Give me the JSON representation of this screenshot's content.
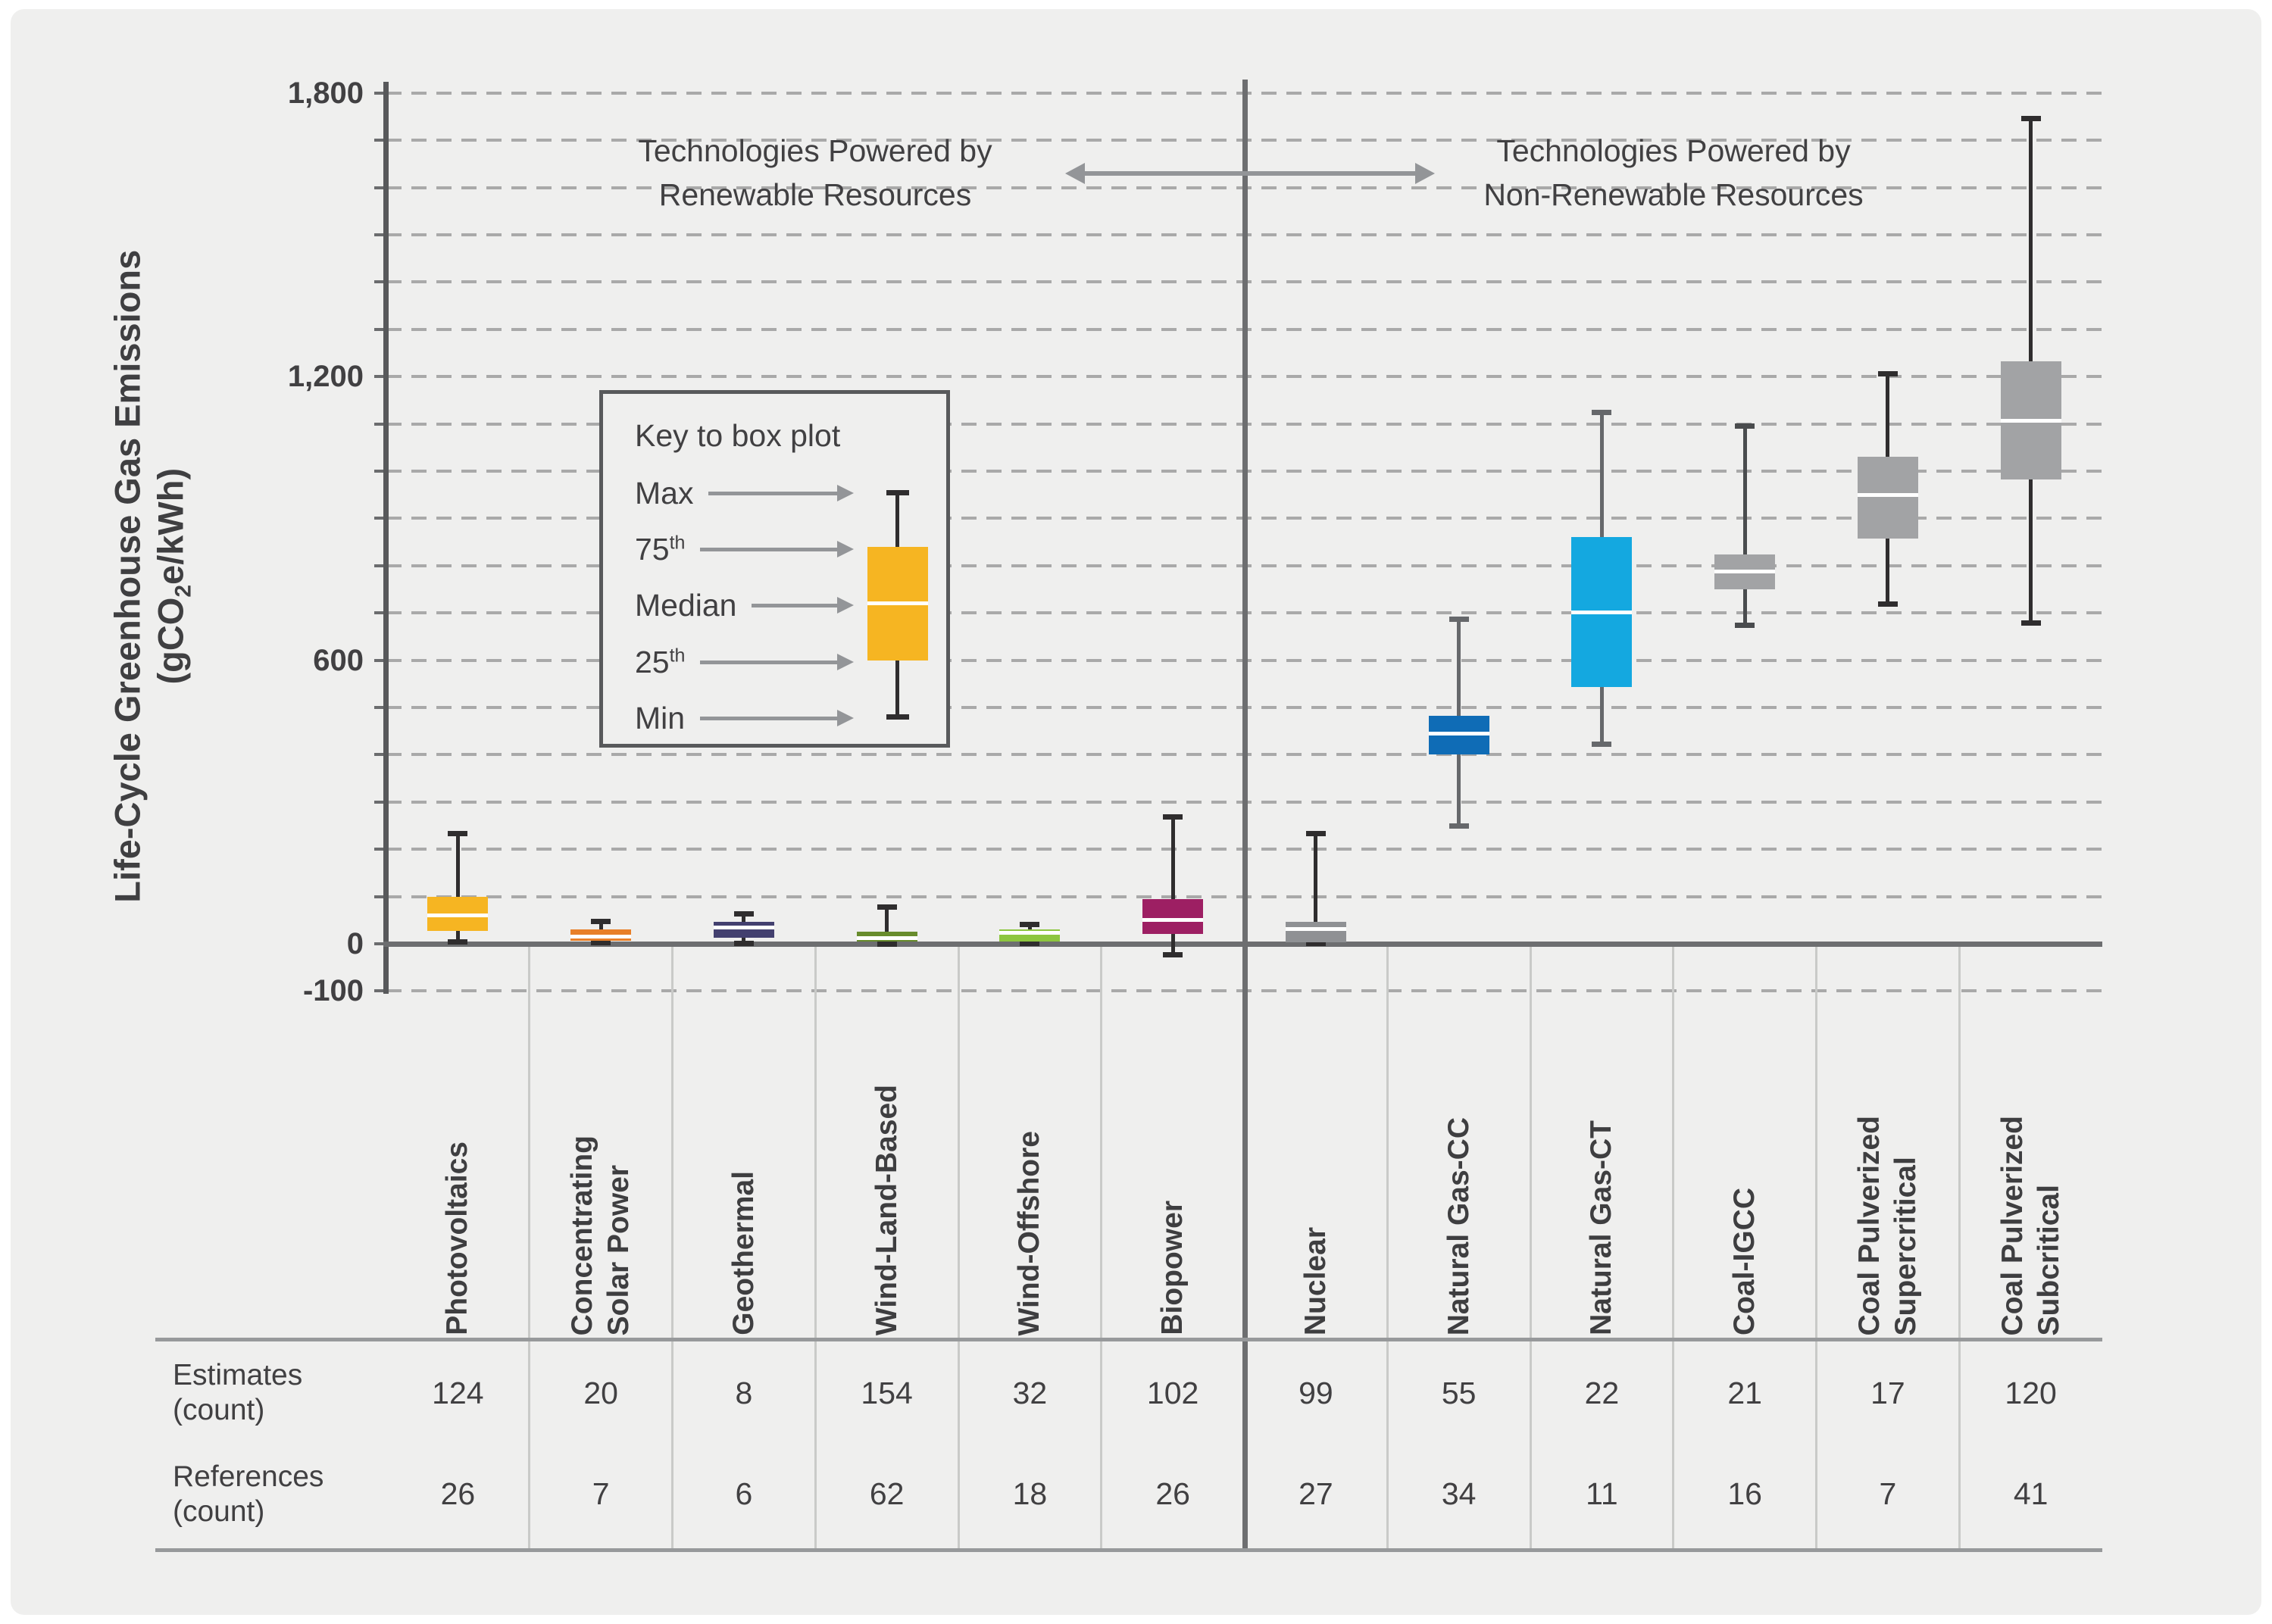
{
  "page": {
    "background": "#ffffff",
    "panel_background": "#efefee",
    "accent_text_color": "#414042"
  },
  "y_axis": {
    "title_line1": "Life-Cycle Greenhouse Gas Emissions",
    "title_unit": {
      "prefix": "(gCO",
      "sub": "2",
      "suffix": "e/kWh)"
    },
    "ticks": [
      {
        "value": 1800,
        "label": "1,800"
      },
      {
        "value": 1200,
        "label": "1,200"
      },
      {
        "value": 600,
        "label": "600"
      },
      {
        "value": 0,
        "label": "0"
      },
      {
        "value": -100,
        "label": "-100"
      }
    ]
  },
  "annotations": {
    "left": "Technologies Powered by\nRenewable Resources",
    "right": "Technologies Powered by\nNon-Renewable Resources",
    "arrow_color": "#939598"
  },
  "legend": {
    "title": "Key to box plot",
    "items": [
      {
        "text": "Max",
        "sup": ""
      },
      {
        "text": "75",
        "sup": "th"
      },
      {
        "text": "Median",
        "sup": ""
      },
      {
        "text": "25",
        "sup": "th"
      },
      {
        "text": "Min",
        "sup": ""
      }
    ],
    "sample_color": "#f6b522",
    "arrow_color": "#939598"
  },
  "table": {
    "row_labels": [
      "Estimates\n(count)",
      "References\n(count)"
    ]
  },
  "chart_data": {
    "type": "boxplot",
    "title": "",
    "ylabel": "Life-Cycle Greenhouse Gas Emissions (gCO2e/kWh)",
    "ylim": [
      -100,
      1800
    ],
    "ytick_step": 100,
    "grid": "dashed horizontal lines every 100 gCO2e/kWh",
    "legend_position": "inside upper-left",
    "groups": [
      {
        "id": "renewable",
        "label": "Technologies Powered by Renewable Resources"
      },
      {
        "id": "non-renewable",
        "label": "Technologies Powered by Non-Renewable Resources"
      }
    ],
    "series": [
      {
        "name": "photovoltaics",
        "label": "Photovoltaics",
        "group": "renewable",
        "color": "#f6b522",
        "whisker_color": "#2f2d2e",
        "min": 5,
        "q1": 27,
        "median": 60,
        "q3": 100,
        "max": 232,
        "estimates": 124,
        "references": 26
      },
      {
        "name": "concentrating-solar-power",
        "label": "Concentrating\nSolar Power",
        "group": "renewable",
        "color": "#e87f28",
        "whisker_color": "#2f2d2e",
        "min": 3,
        "q1": 6,
        "median": 15,
        "q3": 30,
        "max": 46,
        "estimates": 20,
        "references": 7
      },
      {
        "name": "geothermal",
        "label": "Geothermal",
        "group": "renewable",
        "color": "#43406f",
        "whisker_color": "#2f2d2e",
        "min": 2,
        "q1": 13,
        "median": 34,
        "q3": 47,
        "max": 63,
        "estimates": 8,
        "references": 6
      },
      {
        "name": "wind-land-based",
        "label": "Wind-Land-Based",
        "group": "renewable",
        "color": "#688c2c",
        "whisker_color": "#2f2d2e",
        "min": 0,
        "q1": 4,
        "median": 12,
        "q3": 26,
        "max": 77,
        "estimates": 154,
        "references": 62
      },
      {
        "name": "wind-offshore",
        "label": "Wind-Offshore",
        "group": "renewable",
        "color": "#8dc63f",
        "whisker_color": "#2f2d2e",
        "min": 1,
        "q1": 4,
        "median": 23,
        "q3": 31,
        "max": 40,
        "estimates": 32,
        "references": 18
      },
      {
        "name": "biopower",
        "label": "Biopower",
        "group": "renewable",
        "color": "#9d1f63",
        "whisker_color": "#2f2d2e",
        "min": -22,
        "q1": 21,
        "median": 51,
        "q3": 95,
        "max": 268,
        "estimates": 102,
        "references": 26
      },
      {
        "name": "nuclear",
        "label": "Nuclear",
        "group": "non-renewable",
        "color": "#8f9194",
        "whisker_color": "#2f2d2e",
        "min": 1,
        "q1": 4,
        "median": 32,
        "q3": 47,
        "max": 232,
        "estimates": 99,
        "references": 27
      },
      {
        "name": "natural-gas-cc",
        "label": "Natural Gas-CC",
        "group": "non-renewable",
        "color": "#0f6cb6",
        "whisker_color": "#66686b",
        "min": 250,
        "q1": 400,
        "median": 444,
        "q3": 482,
        "max": 686,
        "estimates": 55,
        "references": 34
      },
      {
        "name": "natural-gas-ct",
        "label": "Natural Gas-CT",
        "group": "non-renewable",
        "color": "#14a8e0",
        "whisker_color": "#66686b",
        "min": 423,
        "q1": 543,
        "median": 701,
        "q3": 860,
        "max": 1124,
        "estimates": 22,
        "references": 11
      },
      {
        "name": "coal-igcc",
        "label": "Coal-IGCC",
        "group": "non-renewable",
        "color": "#a2a3a5",
        "whisker_color": "#4a4c4e",
        "min": 675,
        "q1": 750,
        "median": 788,
        "q3": 823,
        "max": 1094,
        "estimates": 21,
        "references": 16
      },
      {
        "name": "coal-pulverized-supercritical",
        "label": "Coal Pulverized\nSupercritical",
        "group": "non-renewable",
        "color": "#a2a3a5",
        "whisker_color": "#2f2d2e",
        "min": 720,
        "q1": 857,
        "median": 949,
        "q3": 1030,
        "max": 1205,
        "estimates": 17,
        "references": 7
      },
      {
        "name": "coal-pulverized-subcritical",
        "label": "Coal Pulverized\nSubcritical",
        "group": "non-renewable",
        "color": "#a2a3a5",
        "whisker_color": "#2f2d2e",
        "min": 679,
        "q1": 982,
        "median": 1106,
        "q3": 1232,
        "max": 1745,
        "estimates": 120,
        "references": 41
      }
    ]
  }
}
